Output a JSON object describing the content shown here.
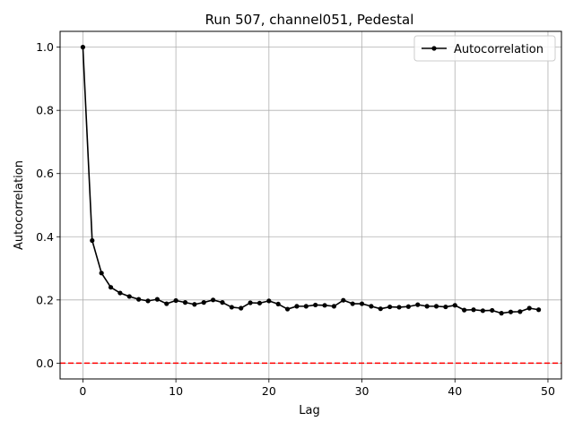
{
  "chart_data": {
    "type": "line",
    "title": "Run 507, channel051, Pedestal",
    "xlabel": "Lag",
    "ylabel": "Autocorrelation",
    "xlim": [
      -2.45,
      51.45
    ],
    "ylim": [
      -0.05,
      1.05
    ],
    "xticks": [
      0,
      10,
      20,
      30,
      40,
      50
    ],
    "yticks": [
      0.0,
      0.2,
      0.4,
      0.6,
      0.8,
      1.0
    ],
    "xtick_labels": [
      "0",
      "10",
      "20",
      "30",
      "40",
      "50"
    ],
    "ytick_labels": [
      "0.0",
      "0.2",
      "0.4",
      "0.6",
      "0.8",
      "1.0"
    ],
    "grid": true,
    "legend_position": "top-right",
    "series": [
      {
        "name": "Autocorrelation",
        "color": "#000000",
        "marker": "circle",
        "x": [
          0,
          1,
          2,
          3,
          4,
          5,
          6,
          7,
          8,
          9,
          10,
          11,
          12,
          13,
          14,
          15,
          16,
          17,
          18,
          19,
          20,
          21,
          22,
          23,
          24,
          25,
          26,
          27,
          28,
          29,
          30,
          31,
          32,
          33,
          34,
          35,
          36,
          37,
          38,
          39,
          40,
          41,
          42,
          43,
          44,
          45,
          46,
          47,
          48,
          49
        ],
        "y": [
          1.0,
          0.388,
          0.285,
          0.24,
          0.222,
          0.211,
          0.202,
          0.197,
          0.202,
          0.188,
          0.198,
          0.192,
          0.186,
          0.192,
          0.2,
          0.192,
          0.177,
          0.174,
          0.191,
          0.19,
          0.197,
          0.187,
          0.171,
          0.18,
          0.18,
          0.184,
          0.183,
          0.18,
          0.199,
          0.188,
          0.188,
          0.18,
          0.172,
          0.178,
          0.177,
          0.179,
          0.185,
          0.18,
          0.18,
          0.178,
          0.183,
          0.168,
          0.169,
          0.166,
          0.167,
          0.158,
          0.162,
          0.163,
          0.174,
          0.169
        ]
      }
    ],
    "reference_lines": [
      {
        "axis": "y",
        "value": 0.0,
        "color": "#ff0000",
        "style": "dashed"
      }
    ]
  }
}
